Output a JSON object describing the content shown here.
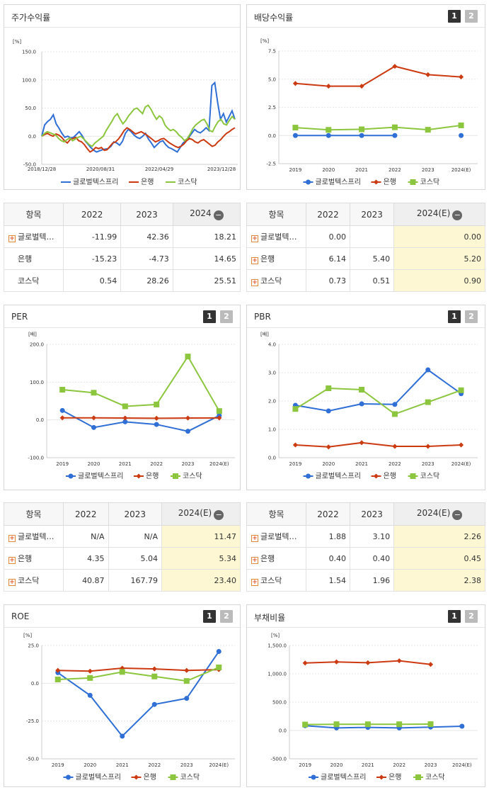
{
  "colors": {
    "global": "#2f6fd6",
    "bank": "#cc3a12",
    "kosdaq": "#8cc63e"
  },
  "legend": [
    "글로벌텍스프리",
    "은행",
    "코스닥"
  ],
  "pager": [
    "1",
    "2"
  ],
  "panels": {
    "price": {
      "title": "주가수익률",
      "unit": "[%]",
      "chart_data": {
        "type": "line",
        "y_ticks": [
          "150.0",
          "100.0",
          "50.0",
          "0.0",
          "-50.0"
        ],
        "ylim": [
          -50,
          150
        ],
        "x_ticks": [
          "2018/12/28",
          "2020/08/31",
          "2022/04/29",
          "2023/12/28"
        ],
        "x_range": [
          "2018/12/28",
          "2024/05/31"
        ],
        "series": [
          {
            "name": "글로벌텍스프리",
            "values": [
              0,
              20,
              26,
              30,
              38,
              22,
              14,
              5,
              -2,
              0,
              -3,
              -2,
              3,
              8,
              1,
              -8,
              -14,
              -20,
              -25,
              -28,
              -26,
              -24,
              -23,
              -22,
              -18,
              -10,
              -12,
              -16,
              -9,
              5,
              12,
              8,
              2,
              -2,
              -4,
              0,
              5,
              -5,
              -12,
              -20,
              -15,
              -10,
              -8,
              -15,
              -20,
              -22,
              -25,
              -28,
              -20,
              -12,
              -8,
              -2,
              5,
              12,
              8,
              6,
              10,
              15,
              10,
              90,
              95,
              60,
              30,
              40,
              25,
              35,
              45,
              30
            ]
          },
          {
            "name": "은행",
            "values": [
              0,
              3,
              5,
              2,
              0,
              4,
              2,
              -2,
              -8,
              -12,
              -6,
              -4,
              -2,
              -8,
              -10,
              -15,
              -22,
              -28,
              -25,
              -20,
              -22,
              -20,
              -25,
              -24,
              -18,
              -12,
              -10,
              -5,
              2,
              10,
              15,
              12,
              8,
              4,
              6,
              8,
              5,
              2,
              -2,
              -6,
              -10,
              -8,
              -5,
              -4,
              -8,
              -12,
              -15,
              -18,
              -20,
              -18,
              -14,
              -8,
              -4,
              -6,
              -10,
              -12,
              -8,
              -6,
              -10,
              -14,
              -18,
              -16,
              -10,
              -6,
              0,
              5,
              8,
              12,
              15
            ]
          },
          {
            "name": "코스닥",
            "values": [
              0,
              5,
              8,
              6,
              4,
              2,
              -4,
              -8,
              -10,
              -6,
              -3,
              -8,
              -5,
              -2,
              0,
              -5,
              -10,
              -15,
              -18,
              -12,
              -8,
              -4,
              0,
              10,
              18,
              26,
              35,
              40,
              30,
              22,
              28,
              36,
              42,
              48,
              50,
              45,
              40,
              52,
              55,
              48,
              38,
              30,
              36,
              32,
              20,
              14,
              10,
              12,
              8,
              2,
              -2,
              -8,
              -4,
              4,
              14,
              20,
              24,
              28,
              30,
              22,
              10,
              8,
              18,
              26,
              30,
              22,
              20,
              28,
              35,
              30
            ]
          }
        ]
      }
    },
    "dividend": {
      "title": "배당수익률",
      "unit": "[%]",
      "chart_data": {
        "type": "line",
        "categories": [
          "2019",
          "2020",
          "2021",
          "2022",
          "2023",
          "2024(E)"
        ],
        "y_ticks": [
          "7.5",
          "5.0",
          "2.5",
          "0.0",
          "-2.5"
        ],
        "ylim": [
          -2.5,
          7.5
        ],
        "series": [
          {
            "name": "글로벌텍스프리",
            "values": [
              0.0,
              0.0,
              0.0,
              0.0,
              null,
              0.0
            ]
          },
          {
            "name": "은행",
            "values": [
              4.62,
              4.38,
              4.38,
              6.14,
              5.4,
              5.2
            ]
          },
          {
            "name": "코스닥",
            "values": [
              0.7,
              0.5,
              0.55,
              0.73,
              0.51,
              0.9
            ]
          }
        ]
      }
    },
    "per": {
      "title": "PER",
      "unit": "[배]",
      "chart_data": {
        "type": "line",
        "categories": [
          "2019",
          "2020",
          "2021",
          "2022",
          "2023",
          "2024(E)"
        ],
        "y_ticks": [
          "200.0",
          "100.0",
          "0.0",
          "-100.0"
        ],
        "ylim": [
          -100,
          200
        ],
        "series": [
          {
            "name": "글로벌텍스프리",
            "values": [
              25,
              -20,
              -5,
              -12,
              -30,
              11.47
            ]
          },
          {
            "name": "은행",
            "values": [
              5.5,
              5.5,
              5.0,
              4.35,
              5.04,
              5.34
            ]
          },
          {
            "name": "코스닥",
            "values": [
              80,
              72,
              36,
              40.87,
              167.79,
              23.4
            ]
          }
        ]
      }
    },
    "pbr": {
      "title": "PBR",
      "unit": "[배]",
      "chart_data": {
        "type": "line",
        "categories": [
          "2019",
          "2020",
          "2021",
          "2022",
          "2023",
          "2024(E)"
        ],
        "y_ticks": [
          "4.0",
          "3.0",
          "2.0",
          "1.0",
          "0.0"
        ],
        "ylim": [
          0,
          4
        ],
        "series": [
          {
            "name": "글로벌텍스프리",
            "values": [
              1.85,
              1.65,
              1.9,
              1.88,
              3.1,
              2.26
            ]
          },
          {
            "name": "은행",
            "values": [
              0.45,
              0.38,
              0.53,
              0.4,
              0.4,
              0.45
            ]
          },
          {
            "name": "코스닥",
            "values": [
              1.72,
              2.45,
              2.4,
              1.54,
              1.96,
              2.38
            ]
          }
        ]
      }
    },
    "roe": {
      "title": "ROE",
      "unit": "[%]",
      "chart_data": {
        "type": "line",
        "categories": [
          "2019",
          "2020",
          "2021",
          "2022",
          "2023",
          "2024(E)"
        ],
        "y_ticks": [
          "25.0",
          "0.0",
          "-25.0",
          "-50.0"
        ],
        "ylim": [
          -50,
          25
        ],
        "series": [
          {
            "name": "글로벌텍스프리",
            "values": [
              7,
              -8,
              -35,
              -14,
              -10,
              21
            ]
          },
          {
            "name": "은행",
            "values": [
              8.5,
              8,
              10,
              9.5,
              8.5,
              9
            ]
          },
          {
            "name": "코스닥",
            "values": [
              2.5,
              3.5,
              7.5,
              4.5,
              1.5,
              10.5
            ]
          }
        ]
      }
    },
    "debt": {
      "title": "부채비율",
      "unit": "[%]",
      "chart_data": {
        "type": "line",
        "categories": [
          "2019",
          "2020",
          "2021",
          "2022",
          "2023",
          "2024(E)"
        ],
        "y_ticks": [
          "1,500.0",
          "1,000.0",
          "500.0",
          "0.0",
          "-500.0"
        ],
        "ylim": [
          -500,
          1500
        ],
        "series": [
          {
            "name": "글로벌텍스프리",
            "values": [
              85,
              45,
              55,
              45,
              60,
              75
            ]
          },
          {
            "name": "은행",
            "values": [
              1190,
              1210,
              1195,
              1230,
              1165,
              null
            ]
          },
          {
            "name": "코스닥",
            "values": [
              105,
              110,
              110,
              110,
              112,
              null
            ]
          }
        ]
      }
    }
  },
  "tables": {
    "price": {
      "headers": [
        "항목",
        "2022",
        "2023",
        "2024"
      ],
      "rows": [
        {
          "name": "글로벌텍…",
          "plus": true,
          "cells": [
            "-11.99",
            "42.36",
            "18.21"
          ]
        },
        {
          "name": "은행",
          "plus": false,
          "cells": [
            "-15.23",
            "-4.73",
            "14.65"
          ]
        },
        {
          "name": "코스닥",
          "plus": false,
          "cells": [
            "0.54",
            "28.26",
            "25.51"
          ]
        }
      ]
    },
    "dividend": {
      "headers": [
        "항목",
        "2022",
        "2023",
        "2024(E)"
      ],
      "rows": [
        {
          "name": "글로벌텍…",
          "plus": true,
          "cells": [
            "0.00",
            "",
            "0.00"
          ]
        },
        {
          "name": "은행",
          "plus": true,
          "cells": [
            "6.14",
            "5.40",
            "5.20"
          ]
        },
        {
          "name": "코스닥",
          "plus": true,
          "cells": [
            "0.73",
            "0.51",
            "0.90"
          ]
        }
      ]
    },
    "per": {
      "headers": [
        "항목",
        "2022",
        "2023",
        "2024(E)"
      ],
      "rows": [
        {
          "name": "글로벌텍…",
          "plus": true,
          "cells": [
            "N/A",
            "N/A",
            "11.47"
          ]
        },
        {
          "name": "은행",
          "plus": true,
          "cells": [
            "4.35",
            "5.04",
            "5.34"
          ]
        },
        {
          "name": "코스닥",
          "plus": true,
          "cells": [
            "40.87",
            "167.79",
            "23.40"
          ]
        }
      ]
    },
    "pbr": {
      "headers": [
        "항목",
        "2022",
        "2023",
        "2024(E)"
      ],
      "rows": [
        {
          "name": "글로벌텍…",
          "plus": true,
          "cells": [
            "1.88",
            "3.10",
            "2.26"
          ]
        },
        {
          "name": "은행",
          "plus": true,
          "cells": [
            "0.40",
            "0.40",
            "0.45"
          ]
        },
        {
          "name": "코스닥",
          "plus": true,
          "cells": [
            "1.54",
            "1.96",
            "2.38"
          ]
        }
      ]
    }
  },
  "minus_glyph": "−",
  "plus_glyph": "+"
}
